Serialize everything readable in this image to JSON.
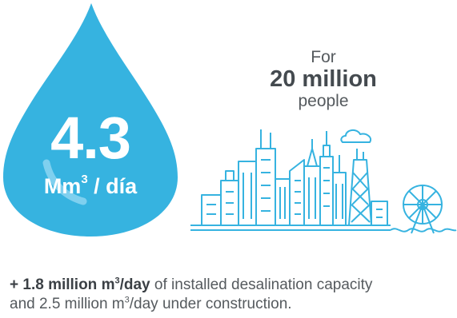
{
  "drop": {
    "value": "4.3",
    "unit_main": "Mm",
    "unit_exp": "3",
    "unit_suffix": " / día",
    "color": "#36b3e0"
  },
  "population": {
    "prefix": "For",
    "number": "20 million",
    "suffix": "people"
  },
  "skyline": {
    "icon": "city-skyline-icon",
    "color": "#36b3e0"
  },
  "footnote": {
    "bold_main": "+ 1.8 million m",
    "bold_exp": "3",
    "bold_suffix": "/day",
    "line1_rest": " of installed desalination capacity",
    "line2_main": "and 2.5 million m",
    "line2_exp": "3",
    "line2_suffix": "/day under construction."
  }
}
